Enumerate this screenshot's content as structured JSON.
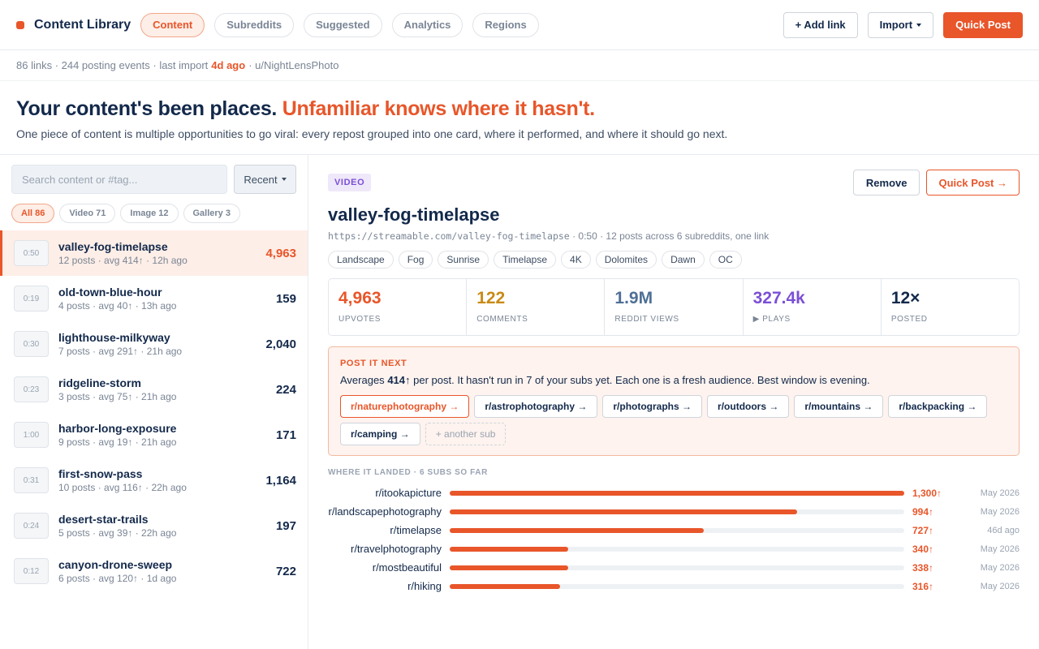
{
  "app": {
    "title": "Content Library",
    "brand_color": "#e8562a"
  },
  "nav": {
    "tabs": [
      {
        "label": "Content",
        "active": true
      },
      {
        "label": "Subreddits"
      },
      {
        "label": "Suggested"
      },
      {
        "label": "Analytics"
      },
      {
        "label": "Regions"
      }
    ]
  },
  "toolbar": {
    "add_link": "+ Add link",
    "import": "Import",
    "quick_post": "Quick Post"
  },
  "summary": {
    "prefix": "86 links · 244 posting events · last import",
    "last_import": "4d ago",
    "user": "· u/NightLensPhoto"
  },
  "hero": {
    "headline": "Your content's been places.",
    "headline_accent": "Unfamiliar knows where it hasn't.",
    "description": "One piece of content is multiple opportunities to go viral: every repost grouped into one card, where it performed, and where it should go next."
  },
  "sidebar": {
    "search_placeholder": "Search content or #tag...",
    "sort": "Recent",
    "filters": [
      {
        "label": "All 86",
        "active": true
      },
      {
        "label": "Video 71"
      },
      {
        "label": "Image 12"
      },
      {
        "label": "Gallery 3"
      }
    ],
    "items": [
      {
        "duration": "0:50",
        "title": "valley-fog-timelapse",
        "meta": "12 posts · avg 414↑ · 12h ago",
        "score": "4,963",
        "active": true
      },
      {
        "duration": "0:19",
        "title": "old-town-blue-hour",
        "meta": "4 posts · avg 40↑ · 13h ago",
        "score": "159"
      },
      {
        "duration": "0:30",
        "title": "lighthouse-milkyway",
        "meta": "7 posts · avg 291↑ · 21h ago",
        "score": "2,040"
      },
      {
        "duration": "0:23",
        "title": "ridgeline-storm",
        "meta": "3 posts · avg 75↑ · 21h ago",
        "score": "224"
      },
      {
        "duration": "1:00",
        "title": "harbor-long-exposure",
        "meta": "9 posts · avg 19↑ · 21h ago",
        "score": "171"
      },
      {
        "duration": "0:31",
        "title": "first-snow-pass",
        "meta": "10 posts · avg 116↑ · 22h ago",
        "score": "1,164"
      },
      {
        "duration": "0:24",
        "title": "desert-star-trails",
        "meta": "5 posts · avg 39↑ · 22h ago",
        "score": "197"
      },
      {
        "duration": "0:12",
        "title": "canyon-drone-sweep",
        "meta": "6 posts · avg 120↑ · 1d ago",
        "score": "722"
      }
    ]
  },
  "detail": {
    "type": "VIDEO",
    "remove": "Remove",
    "quick_post": "Quick Post →",
    "title": "valley-fog-timelapse",
    "url": "https://streamable.com/valley-fog-timelapse",
    "meta": "· 0:50 · 12 posts across 6 subreddits, one link",
    "tags": [
      "Landscape",
      "Fog",
      "Sunrise",
      "Timelapse",
      "4K",
      "Dolomites",
      "Dawn",
      "OC"
    ],
    "stats": [
      {
        "value": "4,963",
        "label": "UPVOTES",
        "color": "#e8562a"
      },
      {
        "value": "122",
        "label": "COMMENTS",
        "color": "#c98a16"
      },
      {
        "value": "1.9M",
        "label": "REDDIT VIEWS",
        "color": "#4f6f96"
      },
      {
        "value": "327.4k",
        "label": "▶ PLAYS",
        "color": "#7b4fd6"
      },
      {
        "value": "12×",
        "label": "POSTED",
        "color": "#13294b"
      }
    ],
    "post_next": {
      "title": "POST IT NEXT",
      "text_before": "Averages",
      "avg": "414↑",
      "text_after": "per post. It hasn't run in 7 of your subs yet. Each one is a fresh audience. Best window is evening.",
      "subs": [
        {
          "label": "r/naturephotography →",
          "active": true
        },
        {
          "label": "r/astrophotography →"
        },
        {
          "label": "r/photographs →"
        },
        {
          "label": "r/outdoors →"
        },
        {
          "label": "r/mountains →"
        },
        {
          "label": "r/backpacking →"
        },
        {
          "label": "r/camping →"
        }
      ],
      "add_sub": "+ another sub"
    },
    "landed": {
      "title": "WHERE IT LANDED · 6 SUBS SO FAR",
      "max": 1300,
      "rows": [
        {
          "sub": "r/itookapicture",
          "value": 1300,
          "label": "1,300↑",
          "date": "May 2026"
        },
        {
          "sub": "r/landscapephotography",
          "value": 994,
          "label": "994↑",
          "date": "May 2026"
        },
        {
          "sub": "r/timelapse",
          "value": 727,
          "label": "727↑",
          "date": "46d ago"
        },
        {
          "sub": "r/travelphotography",
          "value": 340,
          "label": "340↑",
          "date": "May 2026"
        },
        {
          "sub": "r/mostbeautiful",
          "value": 338,
          "label": "338↑",
          "date": "May 2026"
        },
        {
          "sub": "r/hiking",
          "value": 316,
          "label": "316↑",
          "date": "May 2026"
        }
      ]
    }
  }
}
